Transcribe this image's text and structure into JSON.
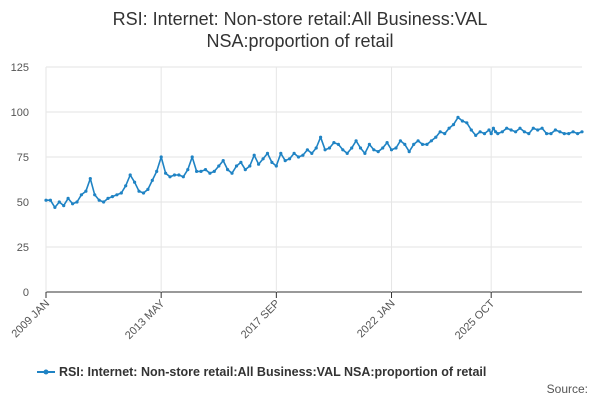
{
  "chart_data": {
    "type": "line",
    "title_lines": [
      "RSI: Internet: Non-store retail:All Business:VAL",
      "NSA:proportion of retail"
    ],
    "y_ticks": [
      "0",
      "25",
      "50",
      "75",
      "100",
      "125"
    ],
    "ylim": [
      0,
      125
    ],
    "x_ticks": [
      "2009 JAN",
      "2013 MAY",
      "2017 SEP",
      "2022 JAN",
      "2025 OCT"
    ],
    "x_tick_values": [
      "2009-01",
      "2013-05",
      "2017-09",
      "2022-01",
      "2025-10"
    ],
    "grid": true,
    "legend_position": "bottom",
    "series": [
      {
        "name": "RSI: Internet: Non-store retail:All Business:VAL NSA:proportion of retail",
        "color": "#1f83c4",
        "points": [
          [
            "2009-01",
            51
          ],
          [
            "2009-03",
            51
          ],
          [
            "2009-05",
            47
          ],
          [
            "2009-07",
            50
          ],
          [
            "2009-09",
            48
          ],
          [
            "2009-11",
            52
          ],
          [
            "2010-01",
            49
          ],
          [
            "2010-03",
            50
          ],
          [
            "2010-05",
            54
          ],
          [
            "2010-07",
            56
          ],
          [
            "2010-09",
            63
          ],
          [
            "2010-11",
            54
          ],
          [
            "2011-01",
            51
          ],
          [
            "2011-03",
            50
          ],
          [
            "2011-05",
            52
          ],
          [
            "2011-07",
            53
          ],
          [
            "2011-09",
            54
          ],
          [
            "2011-11",
            55
          ],
          [
            "2012-01",
            59
          ],
          [
            "2012-03",
            65
          ],
          [
            "2012-05",
            61
          ],
          [
            "2012-07",
            56
          ],
          [
            "2012-09",
            55
          ],
          [
            "2012-11",
            57
          ],
          [
            "2013-01",
            62
          ],
          [
            "2013-03",
            67
          ],
          [
            "2013-05",
            75
          ],
          [
            "2013-07",
            66
          ],
          [
            "2013-09",
            64
          ],
          [
            "2013-11",
            65
          ],
          [
            "2014-01",
            65
          ],
          [
            "2014-03",
            64
          ],
          [
            "2014-05",
            68
          ],
          [
            "2014-07",
            75
          ],
          [
            "2014-09",
            67
          ],
          [
            "2014-11",
            67
          ],
          [
            "2015-01",
            68
          ],
          [
            "2015-03",
            66
          ],
          [
            "2015-05",
            67
          ],
          [
            "2015-07",
            70
          ],
          [
            "2015-09",
            73
          ],
          [
            "2015-11",
            68
          ],
          [
            "2016-01",
            66
          ],
          [
            "2016-03",
            70
          ],
          [
            "2016-05",
            72
          ],
          [
            "2016-07",
            68
          ],
          [
            "2016-09",
            70
          ],
          [
            "2016-11",
            76
          ],
          [
            "2017-01",
            71
          ],
          [
            "2017-03",
            74
          ],
          [
            "2017-05",
            77
          ],
          [
            "2017-07",
            72
          ],
          [
            "2017-09",
            70
          ],
          [
            "2017-11",
            77
          ],
          [
            "2018-01",
            73
          ],
          [
            "2018-03",
            74
          ],
          [
            "2018-05",
            77
          ],
          [
            "2018-07",
            75
          ],
          [
            "2018-09",
            76
          ],
          [
            "2018-11",
            79
          ],
          [
            "2019-01",
            77
          ],
          [
            "2019-03",
            80
          ],
          [
            "2019-05",
            86
          ],
          [
            "2019-07",
            79
          ],
          [
            "2019-09",
            80
          ],
          [
            "2019-11",
            83
          ],
          [
            "2020-01",
            82
          ],
          [
            "2020-03",
            79
          ],
          [
            "2020-05",
            77
          ],
          [
            "2020-07",
            80
          ],
          [
            "2020-09",
            84
          ],
          [
            "2020-11",
            80
          ],
          [
            "2021-01",
            77
          ],
          [
            "2021-03",
            82
          ],
          [
            "2021-05",
            79
          ],
          [
            "2021-07",
            78
          ],
          [
            "2021-09",
            80
          ],
          [
            "2021-11",
            83
          ],
          [
            "2022-01",
            79
          ],
          [
            "2022-03",
            80
          ],
          [
            "2022-05",
            84
          ],
          [
            "2022-07",
            82
          ],
          [
            "2022-09",
            78
          ],
          [
            "2022-11",
            82
          ],
          [
            "2023-01",
            84
          ],
          [
            "2023-03",
            82
          ],
          [
            "2023-05",
            82
          ],
          [
            "2023-07",
            84
          ],
          [
            "2023-09",
            86
          ],
          [
            "2023-11",
            89
          ],
          [
            "2024-01",
            88
          ],
          [
            "2024-03",
            91
          ],
          [
            "2024-05",
            93
          ],
          [
            "2024-07",
            97
          ],
          [
            "2024-09",
            95
          ],
          [
            "2024-11",
            94
          ],
          [
            "2025-01",
            90
          ],
          [
            "2025-03",
            87
          ],
          [
            "2025-05",
            89
          ],
          [
            "2025-07",
            88
          ],
          [
            "2025-09",
            90
          ],
          [
            "2025-10",
            88
          ],
          [
            "2025-11",
            91
          ],
          [
            "2025-12",
            89
          ],
          [
            "2026-01",
            88
          ],
          [
            "2026-03",
            89
          ],
          [
            "2026-05",
            91
          ],
          [
            "2026-07",
            90
          ],
          [
            "2026-09",
            89
          ],
          [
            "2026-11",
            91
          ],
          [
            "2027-01",
            89
          ],
          [
            "2027-03",
            88
          ],
          [
            "2027-05",
            91
          ],
          [
            "2027-07",
            90
          ],
          [
            "2027-09",
            91
          ],
          [
            "2027-11",
            88
          ],
          [
            "2028-01",
            88
          ],
          [
            "2028-03",
            90
          ],
          [
            "2028-05",
            89
          ],
          [
            "2028-07",
            88
          ],
          [
            "2028-09",
            88
          ],
          [
            "2028-11",
            89
          ],
          [
            "2029-01",
            88
          ],
          [
            "2029-03",
            89
          ]
        ]
      }
    ],
    "legend_label": "RSI: Internet: Non-store retail:All Business:VAL NSA:proportion of retail",
    "source_label": "Source:"
  }
}
